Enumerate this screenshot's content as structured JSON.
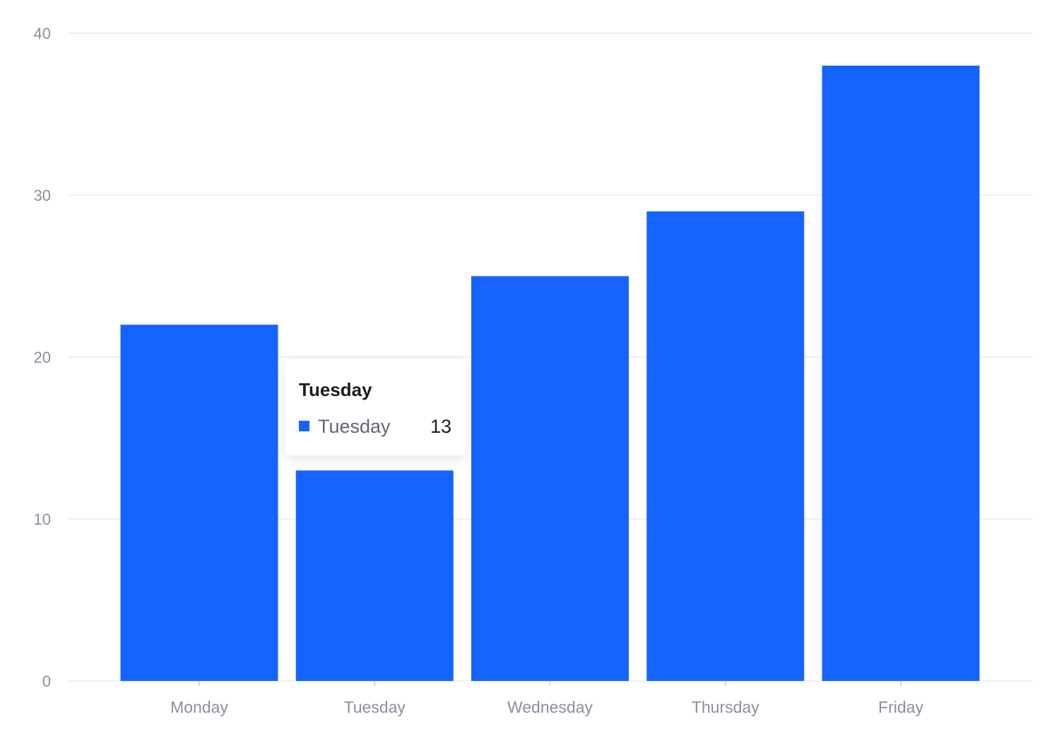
{
  "colors": {
    "bar": "#1664ff",
    "grid": "#e9ebef",
    "axis_text": "#89909c",
    "tick": "#c9cdd4"
  },
  "chart_data": {
    "type": "bar",
    "categories": [
      "Monday",
      "Tuesday",
      "Wednesday",
      "Thursday",
      "Friday"
    ],
    "values": [
      22,
      13,
      25,
      29,
      38
    ],
    "ylim": [
      0,
      40
    ],
    "y_ticks": [
      "0",
      "10",
      "20",
      "30",
      "40"
    ],
    "grid": true,
    "title": "",
    "xlabel": "",
    "ylabel": ""
  },
  "tooltip": {
    "title": "Tuesday",
    "label": "Tuesday",
    "value": "13"
  }
}
